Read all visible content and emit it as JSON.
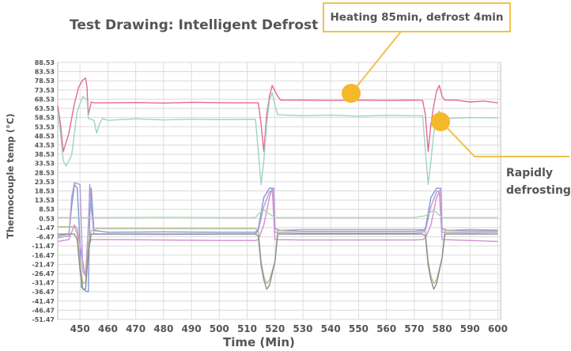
{
  "chart_data": {
    "type": "line",
    "title": "Test Drawing: Intelligent Defrost",
    "xlabel": "Time (Min)",
    "ylabel": "Thermocouple temp (°C)",
    "xlim": [
      442,
      601
    ],
    "ylim": [
      -51.47,
      88.53
    ],
    "xticks": [
      "450",
      "460",
      "470",
      "480",
      "490",
      "500",
      "510",
      "520",
      "530",
      "540",
      "550",
      "560",
      "570",
      "580",
      "590",
      "600"
    ],
    "yticks": [
      "88.53",
      "83.53",
      "78.53",
      "73.53",
      "68.53",
      "63.53",
      "58.53",
      "53.53",
      "48.53",
      "43.53",
      "38.53",
      "33.53",
      "28.53",
      "23.53",
      "18.53",
      "13.53",
      "8.53",
      "0.53",
      "-1.47",
      "-6.47",
      "-11.47",
      "-16.47",
      "-21.47",
      "-26.47",
      "-31.47",
      "-36.47",
      "-41.47",
      "-46.47",
      "-51.47"
    ],
    "grid": true,
    "annotations": [
      {
        "text": "Heating 85min, defrost 4min"
      },
      {
        "lines": [
          "Rapidly",
          "defrosting"
        ]
      }
    ],
    "series": [
      {
        "color": "#e46c8a",
        "points": [
          [
            442,
            65
          ],
          [
            443,
            55
          ],
          [
            444,
            40
          ],
          [
            446,
            50
          ],
          [
            448,
            66
          ],
          [
            449.5,
            75
          ],
          [
            451,
            79
          ],
          [
            452,
            80
          ],
          [
            452.5,
            75
          ],
          [
            453,
            60
          ],
          [
            454,
            67
          ],
          [
            455,
            66.5
          ],
          [
            460,
            66.5
          ],
          [
            470,
            66.7
          ],
          [
            480,
            66.4
          ],
          [
            490,
            66.8
          ],
          [
            500,
            66.6
          ],
          [
            505,
            66.5
          ],
          [
            513,
            66.5
          ],
          [
            514,
            66.5
          ],
          [
            515,
            55
          ],
          [
            516,
            40
          ],
          [
            517,
            60
          ],
          [
            518,
            70
          ],
          [
            519,
            76
          ],
          [
            520,
            73
          ],
          [
            521,
            70
          ],
          [
            522,
            68
          ],
          [
            530,
            68
          ],
          [
            540,
            67.8
          ],
          [
            550,
            68
          ],
          [
            560,
            67.8
          ],
          [
            570,
            68
          ],
          [
            573,
            67.8
          ],
          [
            574,
            60
          ],
          [
            575,
            40
          ],
          [
            576,
            55
          ],
          [
            577,
            65
          ],
          [
            578,
            73
          ],
          [
            579,
            76
          ],
          [
            580,
            70
          ],
          [
            581,
            68
          ],
          [
            585,
            68
          ],
          [
            590,
            67
          ],
          [
            595,
            67.5
          ],
          [
            600,
            66.5
          ]
        ]
      },
      {
        "color": "#9ed4c0",
        "points": [
          [
            442,
            62
          ],
          [
            443,
            50
          ],
          [
            444,
            35
          ],
          [
            445,
            32
          ],
          [
            447,
            38
          ],
          [
            449,
            62
          ],
          [
            451,
            70
          ],
          [
            452.5,
            68
          ],
          [
            453,
            58
          ],
          [
            455,
            57
          ],
          [
            456,
            50
          ],
          [
            457,
            55
          ],
          [
            458,
            58
          ],
          [
            460,
            57
          ],
          [
            470,
            57.8
          ],
          [
            480,
            57.2
          ],
          [
            490,
            57.6
          ],
          [
            500,
            57.4
          ],
          [
            510,
            57.5
          ],
          [
            513,
            57.5
          ],
          [
            514,
            40
          ],
          [
            515,
            22
          ],
          [
            516,
            35
          ],
          [
            517,
            55
          ],
          [
            518,
            68
          ],
          [
            519,
            72
          ],
          [
            520,
            65
          ],
          [
            521,
            60
          ],
          [
            530,
            59.5
          ],
          [
            540,
            59.8
          ],
          [
            550,
            59.3
          ],
          [
            560,
            59.7
          ],
          [
            570,
            59.5
          ],
          [
            573,
            59.5
          ],
          [
            574,
            40
          ],
          [
            575,
            22
          ],
          [
            576,
            35
          ],
          [
            577,
            50
          ],
          [
            578,
            60
          ],
          [
            579,
            62
          ],
          [
            580,
            57
          ],
          [
            582,
            58
          ],
          [
            590,
            58.5
          ],
          [
            600,
            58.3
          ]
        ]
      },
      {
        "color": "#7c9ad6",
        "points": [
          [
            442,
            -6
          ],
          [
            446,
            -5
          ],
          [
            447,
            10
          ],
          [
            448,
            22
          ],
          [
            449,
            20
          ],
          [
            450,
            -10
          ],
          [
            450.5,
            -34
          ],
          [
            452,
            -36
          ],
          [
            453,
            -36.5
          ],
          [
            453.5,
            5
          ],
          [
            454,
            20
          ],
          [
            455,
            -3
          ],
          [
            460,
            -4
          ],
          [
            480,
            -3.8
          ],
          [
            500,
            -4
          ],
          [
            513,
            -4
          ],
          [
            514,
            -2
          ],
          [
            516,
            15
          ],
          [
            518,
            20
          ],
          [
            519.5,
            20
          ],
          [
            520,
            -2
          ],
          [
            522,
            -3
          ],
          [
            530,
            -3.5
          ],
          [
            550,
            -3.5
          ],
          [
            570,
            -3.5
          ],
          [
            573,
            -3
          ],
          [
            574,
            -2
          ],
          [
            576,
            15
          ],
          [
            578,
            20
          ],
          [
            579.5,
            20
          ],
          [
            580,
            -2
          ],
          [
            582,
            -3
          ],
          [
            590,
            -3.3
          ],
          [
            600,
            -3.2
          ]
        ]
      },
      {
        "color": "#b79bd4",
        "points": [
          [
            442,
            -7
          ],
          [
            446,
            -6
          ],
          [
            447,
            15
          ],
          [
            448,
            23
          ],
          [
            450,
            22
          ],
          [
            451,
            -25
          ],
          [
            452,
            -28
          ],
          [
            453,
            0
          ],
          [
            453.5,
            22
          ],
          [
            454,
            10
          ],
          [
            455,
            -5
          ],
          [
            460,
            -5
          ],
          [
            480,
            -5.2
          ],
          [
            500,
            -5
          ],
          [
            513,
            -5
          ],
          [
            514,
            -3
          ],
          [
            516,
            10
          ],
          [
            518,
            18
          ],
          [
            519.5,
            19
          ],
          [
            520,
            -4
          ],
          [
            530,
            -4.5
          ],
          [
            550,
            -4.5
          ],
          [
            570,
            -4.5
          ],
          [
            573,
            -4
          ],
          [
            574,
            -3
          ],
          [
            576,
            10
          ],
          [
            578,
            18
          ],
          [
            579.5,
            19
          ],
          [
            580,
            -4
          ],
          [
            590,
            -4.3
          ],
          [
            600,
            -4
          ]
        ]
      },
      {
        "color": "#d28fd4",
        "points": [
          [
            442,
            -9
          ],
          [
            446,
            -8
          ],
          [
            448,
            0
          ],
          [
            449,
            -2
          ],
          [
            451,
            -20
          ],
          [
            452,
            -28
          ],
          [
            453.5,
            -10
          ],
          [
            454,
            -8
          ],
          [
            460,
            -8
          ],
          [
            480,
            -8.2
          ],
          [
            500,
            -8.5
          ],
          [
            513,
            -8.5
          ],
          [
            514,
            -8
          ],
          [
            516,
            0
          ],
          [
            518,
            15
          ],
          [
            519,
            20
          ],
          [
            520,
            -8
          ],
          [
            530,
            -8.2
          ],
          [
            550,
            -8.2
          ],
          [
            570,
            -8.2
          ],
          [
            573,
            -8
          ],
          [
            574,
            -7
          ],
          [
            576,
            0
          ],
          [
            578,
            15
          ],
          [
            579,
            18
          ],
          [
            580,
            -8
          ],
          [
            590,
            -8.5
          ],
          [
            600,
            -9
          ]
        ]
      },
      {
        "color": "#b5b88c",
        "points": [
          [
            442,
            -1
          ],
          [
            448,
            -1
          ],
          [
            449,
            -5
          ],
          [
            450,
            -20
          ],
          [
            451,
            -32
          ],
          [
            452,
            -31
          ],
          [
            453,
            -10
          ],
          [
            454,
            -3
          ],
          [
            456,
            -2
          ],
          [
            460,
            -2
          ],
          [
            480,
            -2
          ],
          [
            500,
            -2
          ],
          [
            513,
            -2
          ],
          [
            514,
            -3
          ],
          [
            515,
            -20
          ],
          [
            516,
            -28
          ],
          [
            517,
            -32
          ],
          [
            518,
            -30
          ],
          [
            520,
            -20
          ],
          [
            521,
            -3
          ],
          [
            530,
            -2.5
          ],
          [
            550,
            -2.5
          ],
          [
            570,
            -2.5
          ],
          [
            573,
            -2.5
          ],
          [
            574,
            -4
          ],
          [
            575,
            -20
          ],
          [
            576,
            -28
          ],
          [
            577,
            -32
          ],
          [
            578,
            -30
          ],
          [
            580,
            -18
          ],
          [
            581,
            -3
          ],
          [
            590,
            -2.5
          ],
          [
            600,
            -2.8
          ]
        ]
      },
      {
        "color": "#8e8e8e",
        "points": [
          [
            442,
            -5
          ],
          [
            448,
            -5
          ],
          [
            449,
            -8
          ],
          [
            450,
            -25
          ],
          [
            451,
            -35
          ],
          [
            452,
            -35
          ],
          [
            453,
            -15
          ],
          [
            454,
            -5
          ],
          [
            460,
            -5
          ],
          [
            480,
            -5
          ],
          [
            500,
            -5
          ],
          [
            513,
            -5
          ],
          [
            514,
            -6
          ],
          [
            515,
            -22
          ],
          [
            516,
            -30
          ],
          [
            517,
            -35
          ],
          [
            518,
            -33
          ],
          [
            520,
            -20
          ],
          [
            521,
            -5
          ],
          [
            530,
            -5
          ],
          [
            550,
            -5
          ],
          [
            570,
            -5
          ],
          [
            573,
            -5
          ],
          [
            574,
            -6
          ],
          [
            575,
            -22
          ],
          [
            576,
            -30
          ],
          [
            577,
            -35
          ],
          [
            578,
            -32
          ],
          [
            580,
            -18
          ],
          [
            581,
            -5
          ],
          [
            590,
            -5
          ],
          [
            600,
            -5
          ]
        ]
      },
      {
        "color": "#a8d8a8",
        "points": [
          [
            442,
            4
          ],
          [
            460,
            4
          ],
          [
            480,
            4.2
          ],
          [
            500,
            4
          ],
          [
            513,
            4
          ],
          [
            514,
            6
          ],
          [
            516,
            8
          ],
          [
            520,
            4
          ],
          [
            540,
            4
          ],
          [
            570,
            4
          ],
          [
            574,
            5
          ],
          [
            577,
            8
          ],
          [
            580,
            4
          ],
          [
            600,
            4
          ]
        ]
      }
    ]
  }
}
